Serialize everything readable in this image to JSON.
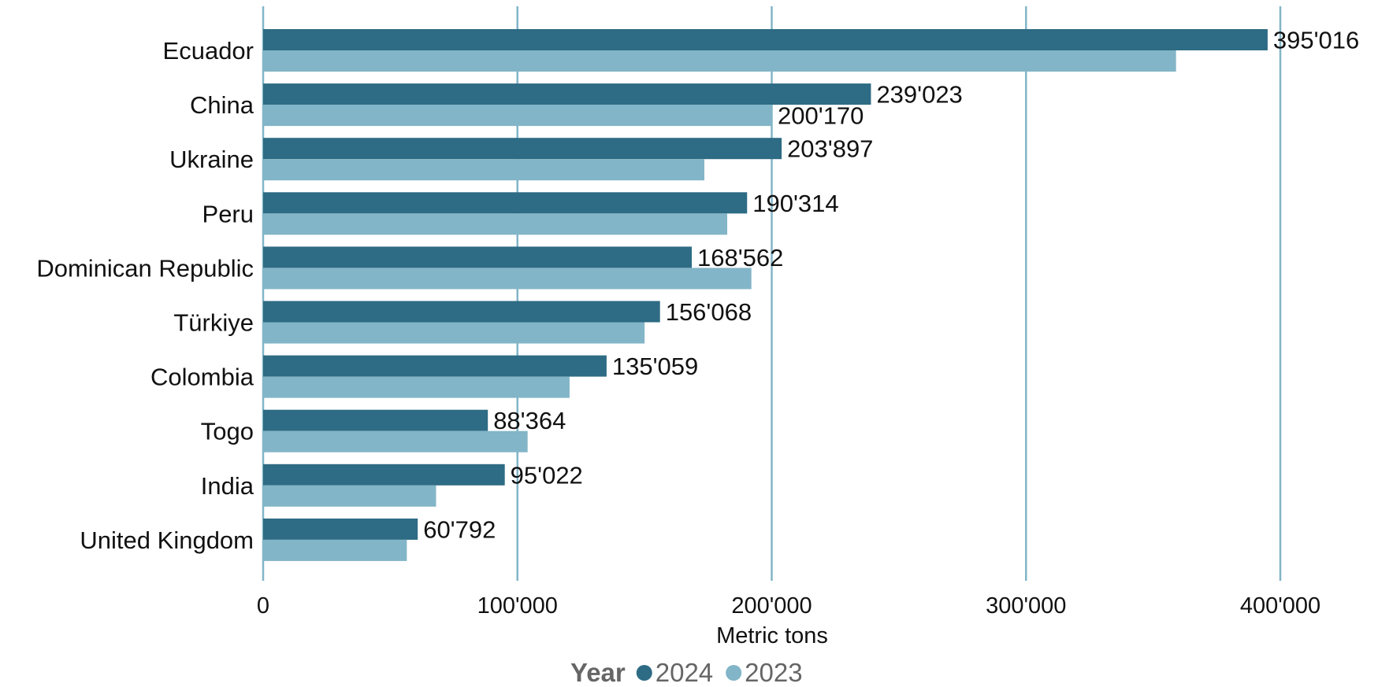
{
  "chart_data": {
    "type": "bar",
    "orientation": "horizontal",
    "categories": [
      "Ecuador",
      "China",
      "Ukraine",
      "Peru",
      "Dominican Republic",
      "Türkiye",
      "Colombia",
      "Togo",
      "India",
      "United Kingdom"
    ],
    "series": [
      {
        "name": "2024",
        "color": "#2e6b84",
        "values": [
          395016,
          239023,
          203897,
          190314,
          168562,
          156068,
          135059,
          88364,
          95022,
          60792
        ],
        "labels": [
          "395'016",
          "239'023",
          "203'897",
          "190'314",
          "168'562",
          "156'068",
          "135'059",
          "88'364",
          "95'022",
          "60'792"
        ]
      },
      {
        "name": "2023",
        "color": "#82b5c7",
        "values": [
          359000,
          200170,
          173500,
          182500,
          192000,
          150000,
          120500,
          104000,
          68000,
          56500
        ],
        "labels": [
          "",
          "200'170",
          "",
          "",
          "",
          "",
          "",
          "",
          "",
          ""
        ]
      }
    ],
    "xlabel": "Metric tons",
    "xlim": [
      0,
      400000
    ],
    "ticks": [
      0,
      100000,
      200000,
      300000,
      400000
    ],
    "tick_labels": [
      "0",
      "100'000",
      "200'000",
      "300'000",
      "400'000"
    ],
    "grid": "vertical",
    "gridline_color": "#82b5c7",
    "legend": {
      "title": "Year",
      "position": "bottom"
    }
  }
}
